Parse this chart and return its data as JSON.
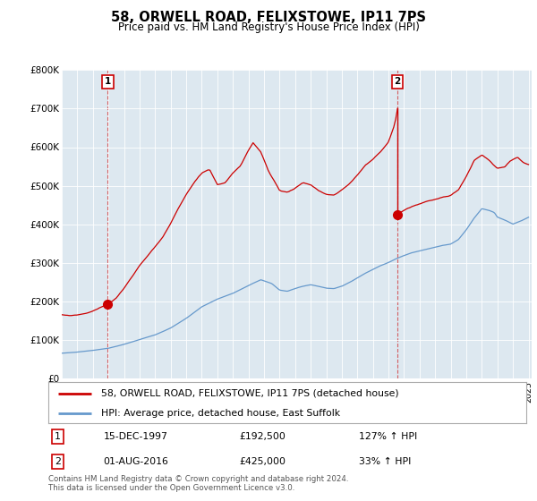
{
  "title": "58, ORWELL ROAD, FELIXSTOWE, IP11 7PS",
  "subtitle": "Price paid vs. HM Land Registry's House Price Index (HPI)",
  "legend_line1": "58, ORWELL ROAD, FELIXSTOWE, IP11 7PS (detached house)",
  "legend_line2": "HPI: Average price, detached house, East Suffolk",
  "transaction1_date": "15-DEC-1997",
  "transaction1_price": 192500,
  "transaction1_label": "127% ↑ HPI",
  "transaction2_date": "01-AUG-2016",
  "transaction2_price": 425000,
  "transaction2_label": "33% ↑ HPI",
  "footer": "Contains HM Land Registry data © Crown copyright and database right 2024.\nThis data is licensed under the Open Government Licence v3.0.",
  "hpi_color": "#6699cc",
  "price_color": "#cc0000",
  "plot_bg_color": "#dde8f0",
  "bg_color": "#ffffff",
  "grid_color": "#ffffff",
  "ylim": [
    0,
    800000
  ],
  "yticks": [
    0,
    100000,
    200000,
    300000,
    400000,
    500000,
    600000,
    700000,
    800000
  ],
  "ytick_labels": [
    "£0",
    "£100K",
    "£200K",
    "£300K",
    "£400K",
    "£500K",
    "£600K",
    "£700K",
    "£800K"
  ],
  "t1_x": 1997.96,
  "t1_y": 192500,
  "t2_x": 2016.58,
  "t2_y": 425000,
  "xmin": 1995.0,
  "xmax": 2025.2
}
